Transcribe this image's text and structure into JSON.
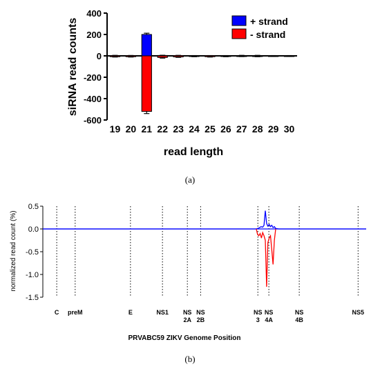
{
  "chart_data": [
    {
      "type": "bar",
      "ylabel": "siRNA read counts",
      "xlabel": "read length",
      "ylim": [
        -600,
        400
      ],
      "yticks": [
        -600,
        -400,
        -200,
        0,
        200,
        400
      ],
      "categories": [
        "19",
        "20",
        "21",
        "22",
        "23",
        "24",
        "25",
        "26",
        "27",
        "28",
        "29",
        "30"
      ],
      "series": [
        {
          "name": "+ strand",
          "color": "#0000ff",
          "values": [
            3,
            2,
            200,
            4,
            3,
            2,
            2,
            2,
            3,
            3,
            2,
            2
          ],
          "errors": [
            2,
            2,
            12,
            2,
            2,
            1,
            1,
            1,
            2,
            2,
            1,
            1
          ]
        },
        {
          "name": "- strand",
          "color": "#ff0000",
          "values": [
            -8,
            -8,
            -520,
            -15,
            -10,
            -6,
            -8,
            -6,
            -5,
            -6,
            -4,
            -4
          ],
          "errors": [
            3,
            3,
            20,
            6,
            4,
            2,
            3,
            2,
            2,
            2,
            2,
            2
          ]
        }
      ],
      "legend": "top-right",
      "caption": "(a)"
    },
    {
      "type": "line",
      "ylabel": "normalized read count (%)",
      "xlabel": "PRVABC59  ZIKV Genome Position",
      "ylim": [
        -1.5,
        0.5
      ],
      "yticks": [
        "-1.5",
        "-1.0",
        "-0.5",
        "0.0",
        "0.5"
      ],
      "regions": [
        "C",
        "preM",
        "E",
        "NS1",
        "NS 2A",
        "NS 2B",
        "NS 3",
        "NS 4A",
        "NS 4B",
        "NS5"
      ],
      "region_boundaries": [
        0.043,
        0.1,
        0.271,
        0.37,
        0.447,
        0.488,
        0.665,
        0.699,
        0.793,
        0.975
      ],
      "series": [
        {
          "name": "+ strand",
          "color": "#0000ff",
          "x": [
            0.0,
            0.66,
            0.668,
            0.675,
            0.68,
            0.684,
            0.688,
            0.692,
            0.696,
            0.7,
            0.704,
            0.708,
            0.712,
            0.716,
            0.72,
            0.73,
            1.0
          ],
          "y": [
            0.0,
            0.0,
            0.02,
            0.05,
            0.04,
            0.08,
            0.4,
            0.12,
            0.06,
            0.1,
            0.05,
            0.08,
            0.03,
            0.05,
            0.01,
            0.0,
            0.0
          ]
        },
        {
          "name": "- strand",
          "color": "#ff0000",
          "x": [
            0.66,
            0.664,
            0.668,
            0.672,
            0.676,
            0.68,
            0.684,
            0.688,
            0.692,
            0.696,
            0.7,
            0.704,
            0.708,
            0.712,
            0.716,
            0.72
          ],
          "y": [
            0.0,
            -0.12,
            -0.15,
            -0.1,
            -0.2,
            -0.08,
            -0.15,
            -0.25,
            -1.27,
            -0.3,
            -0.2,
            -0.15,
            -0.45,
            -0.78,
            -0.25,
            0.0
          ]
        }
      ],
      "caption": "(b)"
    }
  ],
  "legend_a": [
    "+ strand",
    "- strand"
  ]
}
